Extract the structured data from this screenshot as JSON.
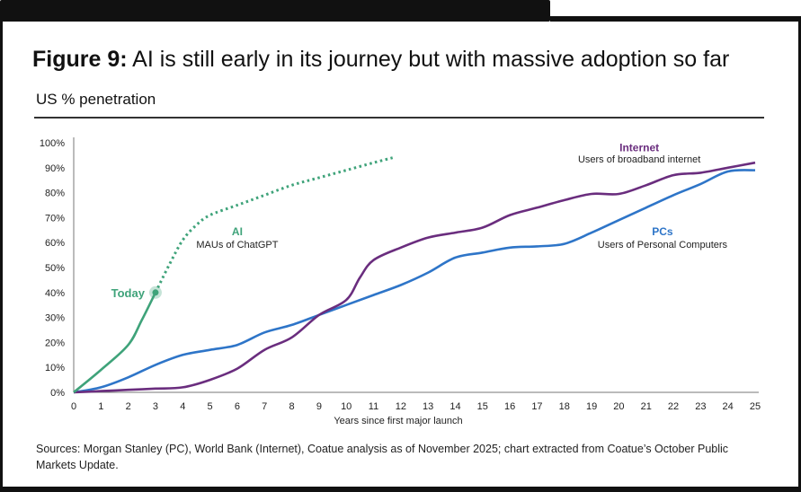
{
  "figure": {
    "label": "Figure 9:",
    "title": "AI is still early in its journey but with massive adoption so far",
    "subtitle": "US % penetration",
    "source": "Sources: Morgan Stanley (PC), World Bank (Internet), Coatue analysis as of November 2025; chart extracted from Coatue’s October Public Markets Update."
  },
  "chart_data": {
    "type": "line",
    "title": "AI is still early in its journey but with massive adoption so far",
    "xlabel": "Years since first major launch",
    "ylabel": "US % penetration",
    "xlim": [
      0,
      25
    ],
    "ylim": [
      0,
      100
    ],
    "x_ticks": [
      0,
      1,
      2,
      3,
      4,
      5,
      6,
      7,
      8,
      9,
      10,
      11,
      12,
      13,
      14,
      15,
      16,
      17,
      18,
      19,
      20,
      21,
      22,
      23,
      24,
      25
    ],
    "y_ticks": [
      0,
      10,
      20,
      30,
      40,
      50,
      60,
      70,
      80,
      90,
      100
    ],
    "y_tick_labels": [
      "0%",
      "10%",
      "20%",
      "30%",
      "40%",
      "50%",
      "60%",
      "70%",
      "80%",
      "90%",
      "100%"
    ],
    "grid": false,
    "series": [
      {
        "name": "AI",
        "description": "MAUs of ChatGPT",
        "color": "#3fa37a",
        "actual": {
          "x": [
            0,
            1,
            2,
            2.5,
            3
          ],
          "y": [
            0,
            9,
            19,
            29,
            40
          ]
        },
        "projected": {
          "x": [
            3,
            3.5,
            4,
            4.5,
            5,
            6,
            7,
            8,
            9,
            10,
            11,
            11.7
          ],
          "y": [
            40,
            51,
            61,
            67,
            71,
            75,
            79,
            83,
            86,
            89,
            92,
            94
          ]
        },
        "annotation": "Today",
        "annotation_x": 3,
        "annotation_y": 40
      },
      {
        "name": "Internet",
        "description": "Users of broadband internet",
        "color": "#6a2d7e",
        "x": [
          0,
          1,
          2,
          3,
          4,
          5,
          6,
          7,
          8,
          9,
          10,
          10.5,
          11,
          12,
          13,
          14,
          15,
          16,
          17,
          18,
          19,
          20,
          21,
          22,
          23,
          24,
          25
        ],
        "y": [
          0,
          0.5,
          1,
          1.5,
          2,
          5,
          9.5,
          17,
          22,
          31,
          37,
          46,
          53,
          58,
          62,
          64,
          66,
          71,
          74,
          77,
          79.5,
          79.5,
          83,
          87,
          88,
          90,
          92
        ]
      },
      {
        "name": "PCs",
        "description": "Users of Personal Computers",
        "color": "#2e75c8",
        "x": [
          0,
          1,
          2,
          3,
          4,
          5,
          6,
          7,
          8,
          9,
          10,
          11,
          12,
          13,
          14,
          15,
          16,
          17,
          18,
          19,
          20,
          21,
          22,
          23,
          24,
          25
        ],
        "y": [
          0,
          2,
          6,
          11,
          15,
          17,
          19,
          24,
          27,
          31,
          35,
          39,
          43,
          48,
          54,
          56,
          58,
          58.5,
          59.5,
          64,
          69,
          74,
          79,
          83.5,
          88.5,
          89
        ]
      }
    ]
  }
}
